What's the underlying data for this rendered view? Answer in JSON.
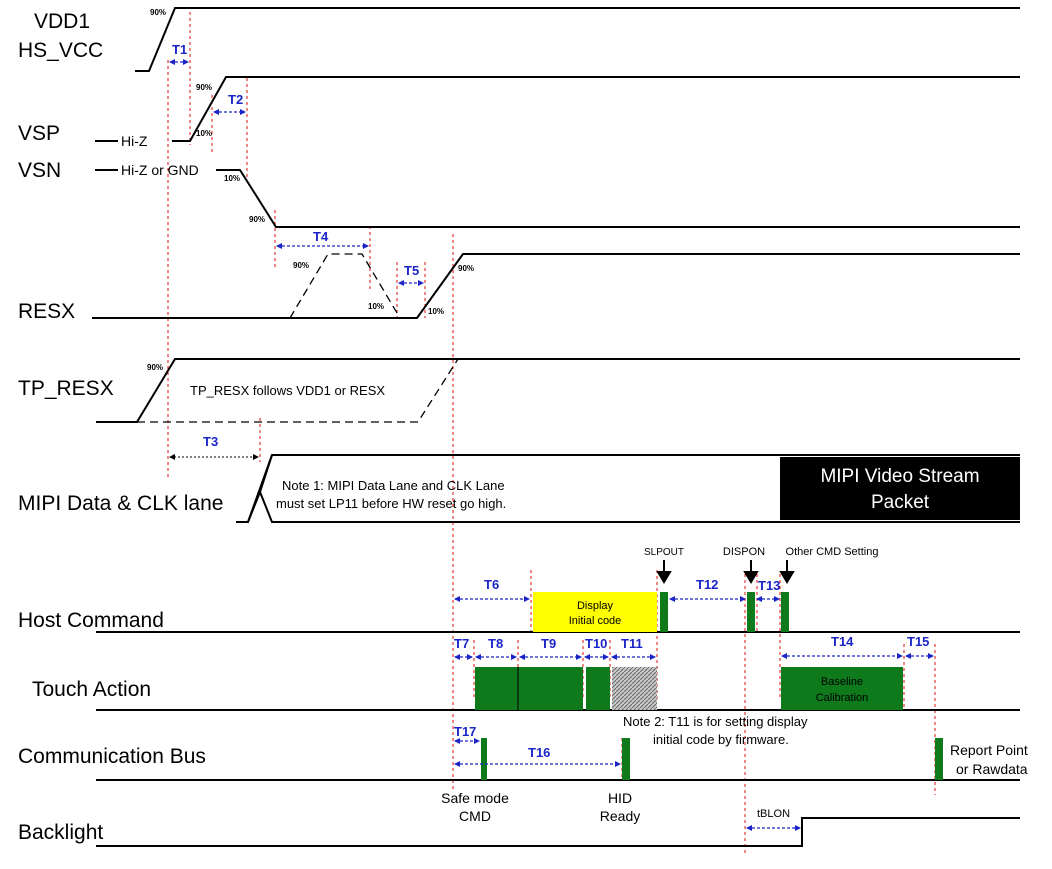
{
  "signals": {
    "vdd1": "VDD1",
    "hs_vcc": "HS_VCC",
    "vsp": "VSP",
    "vsn": "VSN",
    "resx": "RESX",
    "tp_resx": "TP_RESX",
    "mipi": "MIPI Data & CLK lane",
    "host": "Host Command",
    "touch": "Touch Action",
    "bus": "Communication Bus",
    "backlight": "Backlight"
  },
  "levels": {
    "hiz": "Hi-Z",
    "hiz_gnd": "Hi-Z or GND",
    "p90": "90%",
    "p10": "10%"
  },
  "timings": {
    "t1": "T1",
    "t2": "T2",
    "t3": "T3",
    "t4": "T4",
    "t5": "T5",
    "t6": "T6",
    "t7": "T7",
    "t8": "T8",
    "t9": "T9",
    "t10": "T10",
    "t11": "T11",
    "t12": "T12",
    "t13": "T13",
    "t14": "T14",
    "t15": "T15",
    "t16": "T16",
    "t17": "T17",
    "tblon": "tBLON"
  },
  "notes": {
    "tp_resx": "TP_RESX follows VDD1 or RESX",
    "note1_line1": "Note 1: MIPI Data Lane and CLK Lane",
    "note1_line2": "must set LP11 before HW reset go high.",
    "mipi_box_line1": "MIPI Video  Stream",
    "mipi_box_line2": "Packet",
    "note2_line1": "Note 2: T11 is for setting display",
    "note2_line2": "initial code by firmware."
  },
  "commands": {
    "slpout": "SLPOUT",
    "dispon": "DISPON",
    "other": "Other CMD Setting",
    "display_line1": "Display",
    "display_line2": "Initial code",
    "baseline_line1": "Baseline",
    "baseline_line2": "Calibration"
  },
  "bus_labels": {
    "safe_line1": "Safe mode",
    "safe_line2": "CMD",
    "hid_line1": "HID",
    "hid_line2": "Ready",
    "report_line1": "Report Point",
    "report_line2": "or Rawdata"
  },
  "colors": {
    "timing_label": "#1a24c8",
    "guide_line": "#e01010",
    "command_block": "#0e7a1c",
    "display_box": "#ffff00",
    "mipi_box": "#000000"
  }
}
